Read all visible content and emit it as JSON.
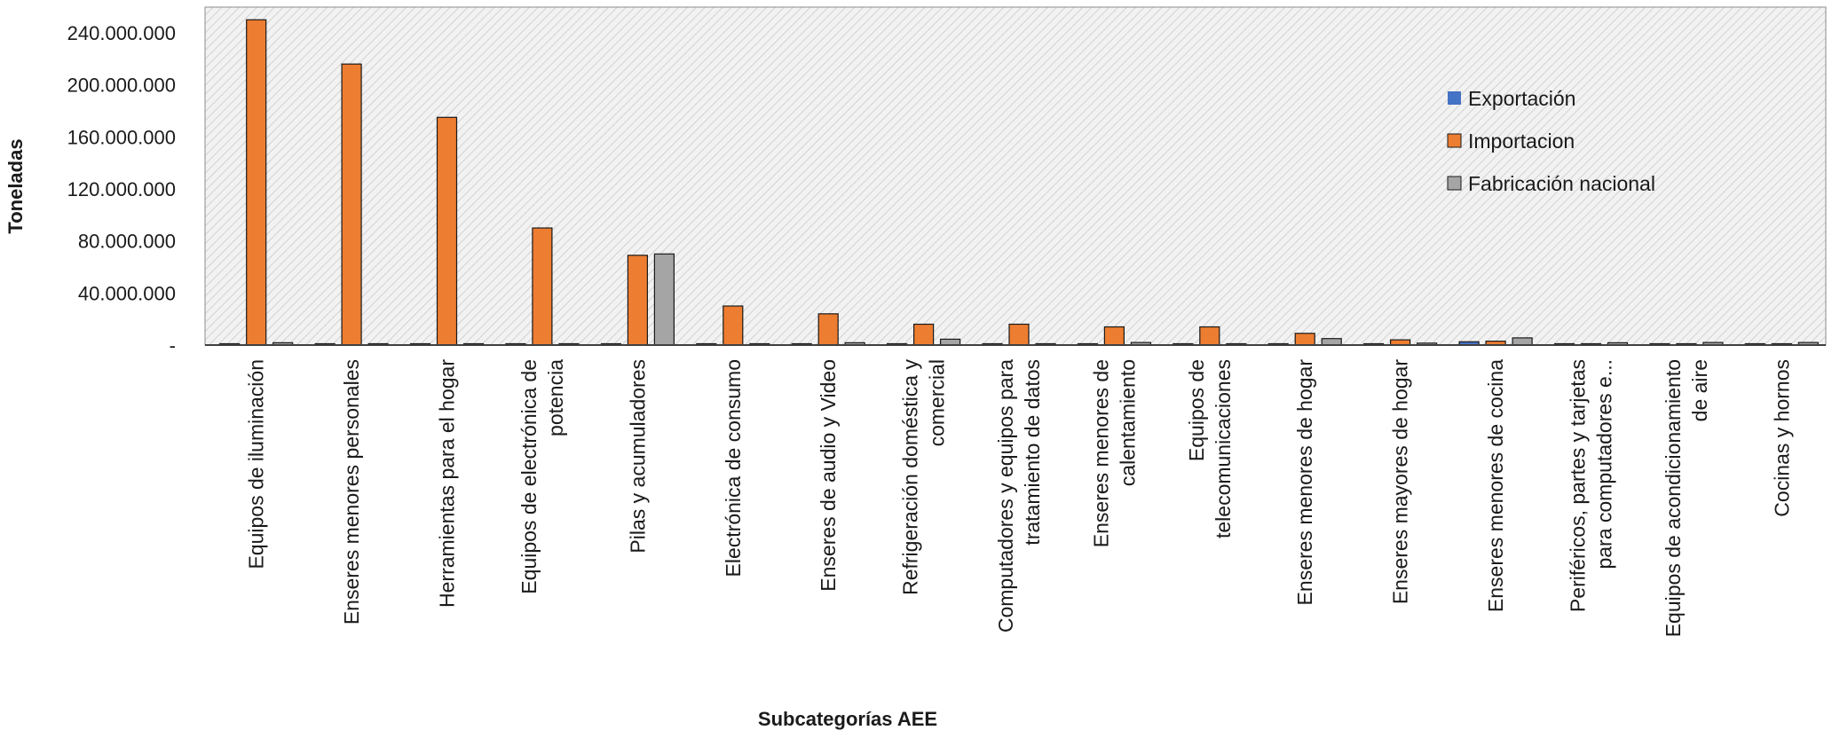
{
  "chart_data": {
    "type": "bar",
    "title": "",
    "xlabel": "Subcategorías AEE",
    "ylabel": "Toneladas",
    "ylim": [
      0,
      240000000
    ],
    "grid": false,
    "legend_position": "right",
    "y_ticks": [
      {
        "value": 0,
        "label": "-"
      },
      {
        "value": 40000000,
        "label": "40.000.000"
      },
      {
        "value": 80000000,
        "label": "80.000.000"
      },
      {
        "value": 120000000,
        "label": "120.000.000"
      },
      {
        "value": 160000000,
        "label": "160.000.000"
      },
      {
        "value": 200000000,
        "label": "200.000.000"
      },
      {
        "value": 240000000,
        "label": "240.000.000"
      }
    ],
    "categories": [
      [
        "Equipos de iluminación"
      ],
      [
        "Enseres menores personales"
      ],
      [
        "Herramientas para el hogar"
      ],
      [
        "Equipos de electrónica de",
        "potencia"
      ],
      [
        "Pilas y acumuladores"
      ],
      [
        "Electrónica de consumo"
      ],
      [
        "Enseres de audio y Video"
      ],
      [
        "Refrigeración doméstica y",
        "comercial"
      ],
      [
        "Computadores y equipos para",
        "tratamiento de datos"
      ],
      [
        "Enseres menores de",
        "calentamiento"
      ],
      [
        "Equipos de",
        "telecomunicaciones"
      ],
      [
        "Enseres menores de hogar"
      ],
      [
        "Enseres mayores de hogar"
      ],
      [
        "Enseres menores de cocina"
      ],
      [
        "Periféricos, partes y tarjetas",
        "para computadores e..."
      ],
      [
        "Equipos de acondicionamiento",
        "de aire"
      ],
      [
        "Cocinas y hornos"
      ]
    ],
    "series": [
      {
        "name": "Exportación",
        "color": "#4472c4",
        "values": [
          200000,
          100000,
          100000,
          100000,
          100000,
          100000,
          300000,
          800000,
          200000,
          200000,
          100000,
          300000,
          200000,
          2500000,
          200000,
          100000,
          200000
        ]
      },
      {
        "name": "Importacion",
        "color": "#ed7d31",
        "values": [
          250000000,
          216000000,
          175000000,
          90000000,
          69000000,
          30000000,
          24000000,
          16000000,
          16000000,
          14000000,
          14000000,
          9000000,
          4000000,
          3000000,
          300000,
          300000,
          300000
        ]
      },
      {
        "name": "Fabricación nacional",
        "color": "#a5a5a5",
        "values": [
          1800000,
          200000,
          200000,
          800000,
          70000000,
          800000,
          1800000,
          4500000,
          1000000,
          2000000,
          600000,
          5000000,
          1500000,
          5500000,
          1800000,
          2000000,
          2000000
        ]
      }
    ]
  }
}
